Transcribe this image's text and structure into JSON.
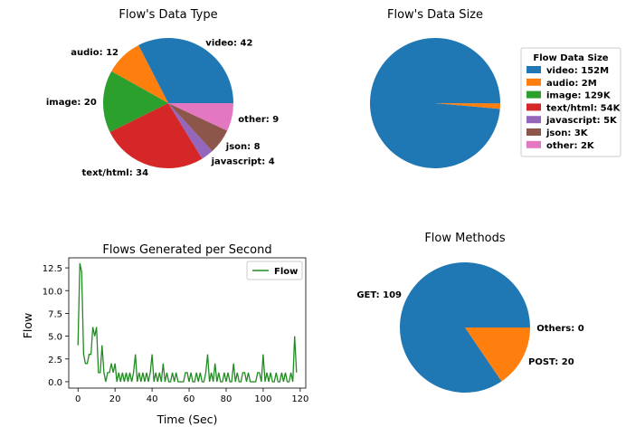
{
  "chart_data": [
    {
      "type": "pie",
      "title": "Flow's Data Type",
      "slices": [
        {
          "label": "video: 42",
          "value": 42,
          "color": "#1f77b4"
        },
        {
          "label": "audio: 12",
          "value": 12,
          "color": "#ff7f0e"
        },
        {
          "label": "image: 20",
          "value": 20,
          "color": "#2ca02c"
        },
        {
          "label": "text/html: 34",
          "value": 34,
          "color": "#d62728"
        },
        {
          "label": "javascript: 4",
          "value": 4,
          "color": "#9467bd"
        },
        {
          "label": "json: 8",
          "value": 8,
          "color": "#8c564b"
        },
        {
          "label": "other: 9",
          "value": 9,
          "color": "#e377c2"
        }
      ]
    },
    {
      "type": "pie",
      "title": "Flow's Data Size",
      "legend": {
        "title": "Flow Data Size",
        "placement": "right",
        "entries": [
          "video: 152M",
          "audio: 2M",
          "image: 129K",
          "text/html: 54K",
          "javascript: 5K",
          "json: 3K",
          "other: 2K"
        ]
      },
      "slices": [
        {
          "value": 152000000,
          "color": "#1f77b4"
        },
        {
          "value": 2000000,
          "color": "#ff7f0e"
        },
        {
          "value": 129000,
          "color": "#2ca02c"
        },
        {
          "value": 54000,
          "color": "#d62728"
        },
        {
          "value": 5000,
          "color": "#9467bd"
        },
        {
          "value": 3000,
          "color": "#8c564b"
        },
        {
          "value": 2000,
          "color": "#e377c2"
        }
      ]
    },
    {
      "type": "line",
      "title": "Flows Generated per Second",
      "xlabel": "Time (Sec)",
      "ylabel": "Flow",
      "xlim": [
        -5,
        123
      ],
      "ylim": [
        -0.7,
        13.6
      ],
      "xticks": [
        0,
        20,
        40,
        60,
        80,
        100,
        120
      ],
      "yticks": [
        0.0,
        2.5,
        5.0,
        7.5,
        10.0,
        12.5
      ],
      "ytick_labels": [
        "0.0",
        "2.5",
        "5.0",
        "7.5",
        "10.0",
        "12.5"
      ],
      "grid": false,
      "legend_placement": "top-right",
      "series": [
        {
          "name": "Flow",
          "color": "#228b22",
          "x": [
            0,
            1,
            2,
            3,
            4,
            5,
            6,
            7,
            8,
            9,
            10,
            11,
            12,
            13,
            14,
            15,
            16,
            17,
            18,
            19,
            20,
            21,
            22,
            23,
            24,
            25,
            26,
            27,
            28,
            29,
            30,
            31,
            32,
            33,
            34,
            35,
            36,
            37,
            38,
            39,
            40,
            41,
            42,
            43,
            44,
            45,
            46,
            47,
            48,
            49,
            50,
            51,
            52,
            53,
            54,
            55,
            56,
            57,
            58,
            59,
            60,
            61,
            62,
            63,
            64,
            65,
            66,
            67,
            68,
            69,
            70,
            71,
            72,
            73,
            74,
            75,
            76,
            77,
            78,
            79,
            80,
            81,
            82,
            83,
            84,
            85,
            86,
            87,
            88,
            89,
            90,
            91,
            92,
            93,
            94,
            95,
            96,
            97,
            98,
            99,
            100,
            101,
            102,
            103,
            104,
            105,
            106,
            107,
            108,
            109,
            110,
            111,
            112,
            113,
            114,
            115,
            116,
            117,
            118
          ],
          "y": [
            4,
            13,
            12,
            3,
            2,
            2,
            3,
            3,
            6,
            5,
            6,
            1,
            1,
            4,
            1,
            0,
            1,
            1,
            2,
            1,
            2,
            0,
            1,
            0,
            1,
            0,
            1,
            0,
            1,
            0,
            1,
            3,
            0,
            1,
            0,
            1,
            0,
            1,
            0,
            1,
            3,
            0,
            1,
            0,
            1,
            0,
            2,
            0,
            1,
            0,
            0,
            1,
            0,
            1,
            0,
            0,
            0,
            0,
            1,
            1,
            0,
            1,
            0,
            0,
            1,
            0,
            1,
            0,
            0,
            1,
            3,
            0,
            1,
            0,
            2,
            0,
            1,
            0,
            0,
            1,
            0,
            1,
            0,
            0,
            2,
            0,
            1,
            0,
            0,
            1,
            1,
            0,
            1,
            0,
            0,
            0,
            0,
            1,
            1,
            0,
            3,
            0,
            1,
            0,
            1,
            0,
            0,
            1,
            0,
            0,
            1,
            0,
            1,
            0,
            0,
            1,
            0,
            5,
            1
          ]
        }
      ]
    },
    {
      "type": "pie",
      "title": "Flow Methods",
      "slices": [
        {
          "label": "GET: 109",
          "value": 109,
          "color": "#1f77b4"
        },
        {
          "label": "POST: 20",
          "value": 20,
          "color": "#ff7f0e"
        },
        {
          "label": "Others: 0",
          "value": 0,
          "color": "#2ca02c"
        }
      ]
    }
  ]
}
